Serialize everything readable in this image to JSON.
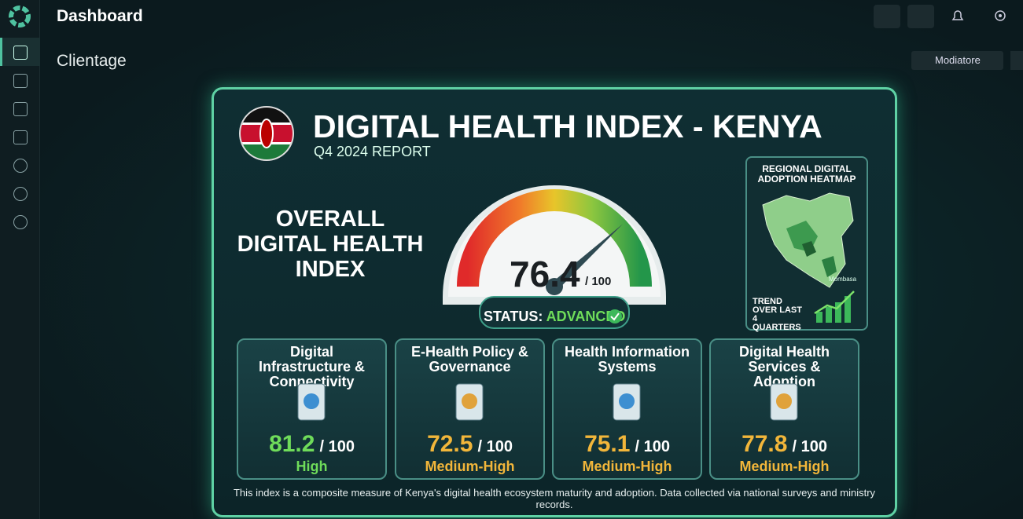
{
  "app": {
    "title": "Dashboard",
    "section": "Clientage",
    "dropdown": "Modiatore"
  },
  "report": {
    "title": "DIGITAL HEALTH INDEX - KENYA",
    "subtitle": "Q4 2024 REPORT",
    "overall": {
      "label": "OVERALL DIGITAL HEALTH INDEX",
      "value": 76.4,
      "scale": {
        "value": 100,
        "label": "/ 100"
      },
      "status_label": "STATUS:",
      "status": "ADVANCED"
    },
    "heatmap": {
      "title": "REGIONAL DIGITAL ADOPTION HEATMAP",
      "city": "Mombasa",
      "trend_label": "TREND OVER LAST 4 QUARTERS"
    },
    "pillars": [
      {
        "title": "Digital Infrastructure & Connectivity",
        "value": 81.2,
        "scale": "/ 100",
        "rating": "High"
      },
      {
        "title": "E-Health Policy & Governance",
        "value": 72.5,
        "scale": "/ 100",
        "rating": "Medium-High"
      },
      {
        "title": "Health Information Systems",
        "value": 75.1,
        "scale": "/ 100",
        "rating": "Medium-High"
      },
      {
        "title": "Digital Health Services & Adoption",
        "value": 77.8,
        "scale": "/ 100",
        "rating": "Medium-High"
      }
    ],
    "footnote": "This index is a composite measure of Kenya's digital health ecosystem maturity and adoption. Data collected via national surveys and ministry records."
  }
}
